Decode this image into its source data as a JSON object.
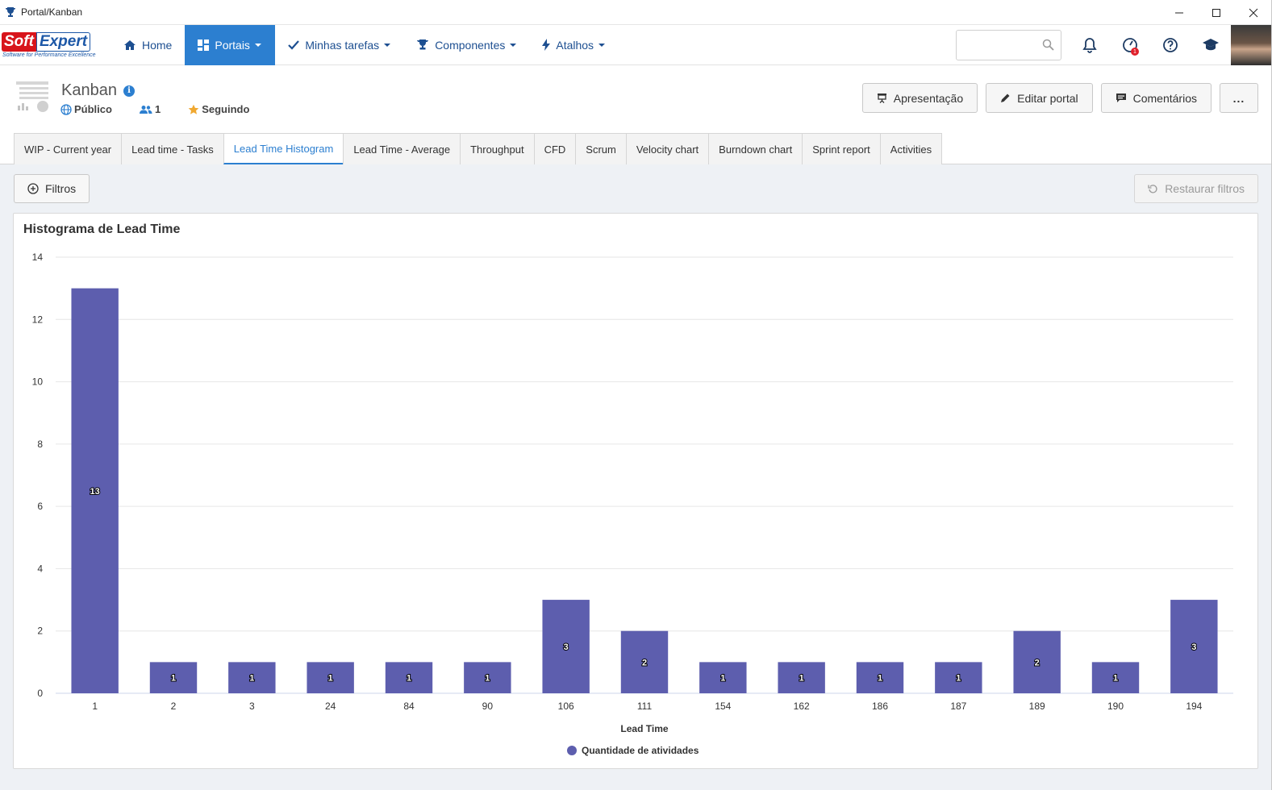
{
  "window": {
    "title": "Portal/Kanban"
  },
  "logo": {
    "soft": "Soft",
    "expert": "Expert",
    "tagline": "Software for Performance Excellence"
  },
  "nav": {
    "items": [
      {
        "label": "Home",
        "icon": "home-icon",
        "active": false,
        "caret": false
      },
      {
        "label": "Portais",
        "icon": "dashboard-icon",
        "active": true,
        "caret": true
      },
      {
        "label": "Minhas tarefas",
        "icon": "check-icon",
        "active": false,
        "caret": true
      },
      {
        "label": "Componentes",
        "icon": "trophy-icon",
        "active": false,
        "caret": true
      },
      {
        "label": "Atalhos",
        "icon": "bolt-icon",
        "active": false,
        "caret": true
      }
    ],
    "search_placeholder": "",
    "badge_count": "1"
  },
  "portal": {
    "title": "Kanban",
    "visibility": "Público",
    "members": "1",
    "follow": "Seguindo",
    "actions": {
      "presentation": "Apresentação",
      "edit": "Editar portal",
      "comments": "Comentários",
      "more": "..."
    }
  },
  "tabs": [
    {
      "label": "WIP - Current year",
      "active": false
    },
    {
      "label": "Lead time - Tasks",
      "active": false
    },
    {
      "label": "Lead Time Histogram",
      "active": true
    },
    {
      "label": "Lead Time - Average",
      "active": false
    },
    {
      "label": "Throughput",
      "active": false
    },
    {
      "label": "CFD",
      "active": false
    },
    {
      "label": "Scrum",
      "active": false
    },
    {
      "label": "Velocity chart",
      "active": false
    },
    {
      "label": "Burndown chart",
      "active": false
    },
    {
      "label": "Sprint report",
      "active": false
    },
    {
      "label": "Activities",
      "active": false
    }
  ],
  "toolbar": {
    "filters": "Filtros",
    "restore": "Restaurar filtros"
  },
  "colors": {
    "accent": "#2c7fd0",
    "bar": "#5d5eae",
    "navtext": "#1d4f91"
  },
  "chart_data": {
    "type": "bar",
    "title": "Histograma de Lead Time",
    "xlabel": "Lead Time",
    "ylabel": "",
    "categories": [
      "1",
      "2",
      "3",
      "24",
      "84",
      "90",
      "106",
      "111",
      "154",
      "162",
      "186",
      "187",
      "189",
      "190",
      "194"
    ],
    "series": [
      {
        "name": "Quantidade de atividades",
        "values": [
          13,
          1,
          1,
          1,
          1,
          1,
          3,
          2,
          1,
          1,
          1,
          1,
          2,
          1,
          3
        ]
      }
    ],
    "ylim": [
      0,
      14
    ],
    "yticks": [
      0,
      2,
      4,
      6,
      8,
      10,
      12,
      14
    ],
    "grid": true,
    "legend": "bottom-center",
    "data_labels": true
  }
}
